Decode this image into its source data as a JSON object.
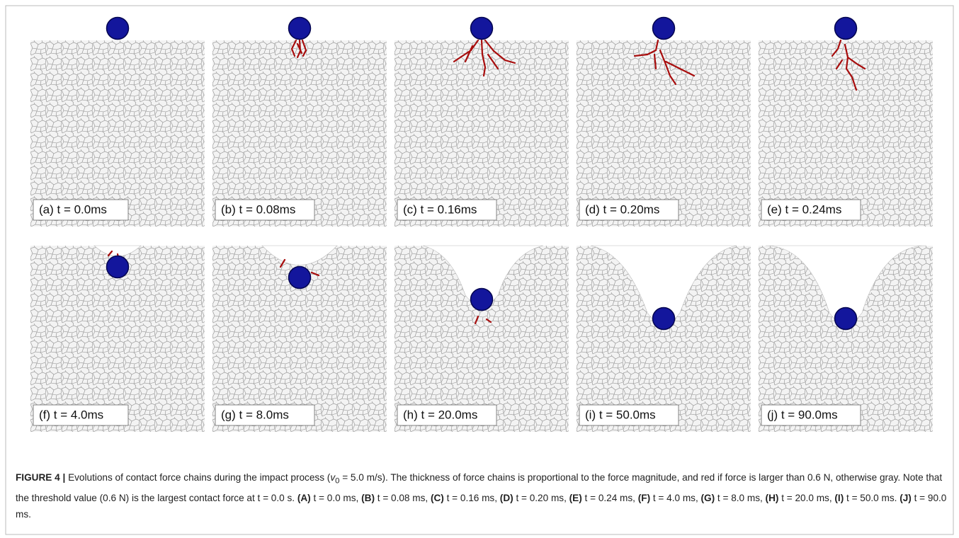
{
  "panels": [
    {
      "label": "(a)  t = 0.0ms"
    },
    {
      "label": "(b)  t = 0.08ms"
    },
    {
      "label": "(c)  t = 0.16ms"
    },
    {
      "label": "(d)  t = 0.20ms"
    },
    {
      "label": "(e)  t = 0.24ms"
    },
    {
      "label": "(f)  t = 4.0ms"
    },
    {
      "label": "(g)  t = 8.0ms"
    },
    {
      "label": "(h)  t = 20.0ms"
    },
    {
      "label": "(i)  t = 50.0ms"
    },
    {
      "label": "(j)  t = 90.0ms"
    }
  ],
  "caption": {
    "figure_label": "FIGURE 4 |",
    "text_before": "Evolutions of contact force chains during the impact process (",
    "var": "v",
    "sub": "0",
    "text_after": " = 5.0 m/s). The thickness of force chains is proportional to the force magnitude, and red if force is larger than 0.6 N, otherwise gray. Note that the threshold value (0.6 N) is the largest contact force at t = 0.0 s.",
    "items": [
      {
        "label": "(A)",
        "text": "t = 0.0 ms,"
      },
      {
        "label": "(B)",
        "text": "t = 0.08 ms,"
      },
      {
        "label": "(C)",
        "text": "t = 0.16 ms,"
      },
      {
        "label": "(D)",
        "text": "t = 0.20 ms,"
      },
      {
        "label": "(E)",
        "text": "t = 0.24 ms,"
      },
      {
        "label": "(F)",
        "text": "t = 4.0 ms,"
      },
      {
        "label": "(G)",
        "text": "t = 8.0 ms,"
      },
      {
        "label": "(H)",
        "text": "t = 20.0 ms,"
      },
      {
        "label": "(I)",
        "text": "t = 50.0 ms."
      },
      {
        "label": "(J)",
        "text": "t = 90.0 ms."
      }
    ]
  }
}
